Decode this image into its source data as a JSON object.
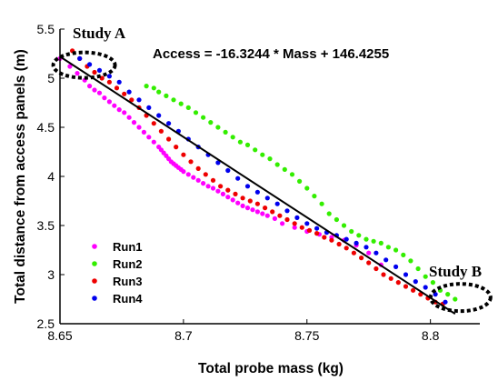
{
  "chart_data": {
    "type": "scatter",
    "xlabel": "Total probe mass (kg)",
    "ylabel": "Total distance from access panels (m)",
    "xlim": [
      8.65,
      8.82
    ],
    "ylim": [
      2.5,
      5.5
    ],
    "xticks": [
      "8.65",
      "8.7",
      "8.75",
      "8.8"
    ],
    "yticks": [
      "2.5",
      "3",
      "3.5",
      "4",
      "4.5",
      "5",
      "5.5"
    ],
    "legend_position": "bottom-left",
    "fit_line": {
      "label": "Access = -16.3244 * Mass + 146.4255",
      "x": [
        8.65,
        8.81
      ],
      "y": [
        5.22,
        2.6
      ]
    },
    "annotations": [
      {
        "text": "Study A",
        "x": 8.655,
        "y": 5.17
      },
      {
        "text": "Study B",
        "x": 8.81,
        "y": 2.73
      }
    ],
    "series": [
      {
        "name": "Run1",
        "color": "#ff00ff",
        "x": [
          8.65,
          8.654,
          8.657,
          8.66,
          8.662,
          8.664,
          8.666,
          8.668,
          8.67,
          8.672,
          8.674,
          8.676,
          8.678,
          8.68,
          8.682,
          8.684,
          8.686,
          8.688,
          8.69,
          8.691,
          8.692,
          8.693,
          8.694,
          8.695,
          8.696,
          8.697,
          8.698,
          8.699,
          8.7,
          8.702,
          8.704,
          8.706,
          8.708,
          8.71,
          8.712,
          8.714,
          8.716,
          8.718,
          8.72,
          8.722,
          8.724,
          8.726,
          8.728,
          8.73,
          8.732,
          8.734,
          8.737,
          8.74,
          8.745,
          8.75,
          8.755,
          8.76,
          8.765,
          8.77,
          8.775,
          8.78
        ],
        "y": [
          5.2,
          5.12,
          5.05,
          4.98,
          4.92,
          4.88,
          4.85,
          4.8,
          4.76,
          4.72,
          4.68,
          4.65,
          4.6,
          4.55,
          4.5,
          4.45,
          4.4,
          4.35,
          4.3,
          4.27,
          4.24,
          4.21,
          4.18,
          4.15,
          4.13,
          4.11,
          4.09,
          4.07,
          4.05,
          4.02,
          3.99,
          3.96,
          3.93,
          3.9,
          3.88,
          3.85,
          3.82,
          3.79,
          3.76,
          3.73,
          3.7,
          3.68,
          3.66,
          3.64,
          3.62,
          3.6,
          3.57,
          3.52,
          3.48,
          3.44,
          3.41,
          3.38,
          3.35,
          3.3,
          3.22,
          3.1
        ]
      },
      {
        "name": "Run2",
        "color": "#33ee00",
        "x": [
          8.685,
          8.688,
          8.69,
          8.693,
          8.696,
          8.699,
          8.702,
          8.705,
          8.708,
          8.711,
          8.714,
          8.717,
          8.72,
          8.723,
          8.726,
          8.729,
          8.732,
          8.735,
          8.738,
          8.741,
          8.744,
          8.747,
          8.75,
          8.753,
          8.756,
          8.759,
          8.762,
          8.765,
          8.768,
          8.771,
          8.774,
          8.777,
          8.78,
          8.783,
          8.786,
          8.789,
          8.792,
          8.795,
          8.798,
          8.801,
          8.804,
          8.807,
          8.81
        ],
        "y": [
          4.92,
          4.9,
          4.86,
          4.82,
          4.78,
          4.74,
          4.7,
          4.65,
          4.6,
          4.55,
          4.5,
          4.45,
          4.4,
          4.35,
          4.32,
          4.27,
          4.22,
          4.18,
          4.12,
          4.07,
          4.02,
          3.95,
          3.88,
          3.8,
          3.72,
          3.62,
          3.56,
          3.5,
          3.44,
          3.4,
          3.36,
          3.34,
          3.32,
          3.28,
          3.25,
          3.2,
          3.14,
          3.06,
          2.98,
          2.92,
          2.84,
          2.8,
          2.75
        ]
      },
      {
        "name": "Run3",
        "color": "#ee0000",
        "x": [
          8.655,
          8.658,
          8.661,
          8.664,
          8.667,
          8.67,
          8.673,
          8.676,
          8.679,
          8.682,
          8.685,
          8.688,
          8.691,
          8.694,
          8.697,
          8.7,
          8.703,
          8.706,
          8.709,
          8.712,
          8.715,
          8.718,
          8.721,
          8.724,
          8.727,
          8.73,
          8.733,
          8.736,
          8.739,
          8.742,
          8.745,
          8.748,
          8.751,
          8.754,
          8.757,
          8.76,
          8.763,
          8.766,
          8.769,
          8.772,
          8.775,
          8.778,
          8.781,
          8.784,
          8.787,
          8.79,
          8.793,
          8.796,
          8.799,
          8.802,
          8.805
        ],
        "y": [
          5.28,
          5.2,
          5.12,
          5.06,
          5.0,
          4.96,
          4.9,
          4.84,
          4.78,
          4.7,
          4.62,
          4.54,
          4.46,
          4.38,
          4.3,
          4.22,
          4.15,
          4.08,
          4.02,
          3.96,
          3.9,
          3.86,
          3.82,
          3.78,
          3.75,
          3.72,
          3.68,
          3.64,
          3.6,
          3.56,
          3.52,
          3.48,
          3.45,
          3.42,
          3.38,
          3.35,
          3.31,
          3.27,
          3.22,
          3.17,
          3.12,
          3.06,
          3.0,
          2.96,
          2.92,
          2.88,
          2.84,
          2.8,
          2.76,
          2.72,
          2.7
        ]
      },
      {
        "name": "Run4",
        "color": "#0000ee",
        "x": [
          8.658,
          8.662,
          8.666,
          8.67,
          8.674,
          8.678,
          8.682,
          8.686,
          8.69,
          8.694,
          8.698,
          8.702,
          8.706,
          8.71,
          8.714,
          8.718,
          8.722,
          8.726,
          8.73,
          8.734,
          8.738,
          8.742,
          8.746,
          8.75,
          8.754,
          8.758,
          8.762,
          8.766,
          8.77,
          8.774,
          8.778,
          8.782,
          8.786,
          8.79,
          8.794,
          8.798,
          8.802,
          8.806
        ],
        "y": [
          5.2,
          5.14,
          5.08,
          5.02,
          4.96,
          4.86,
          4.78,
          4.7,
          4.62,
          4.54,
          4.46,
          4.38,
          4.3,
          4.22,
          4.14,
          4.06,
          3.98,
          3.9,
          3.84,
          3.78,
          3.72,
          3.65,
          3.58,
          3.52,
          3.47,
          3.43,
          3.4,
          3.36,
          3.32,
          3.28,
          3.22,
          3.15,
          3.08,
          3.0,
          2.93,
          2.87,
          2.8,
          2.72
        ]
      }
    ]
  }
}
